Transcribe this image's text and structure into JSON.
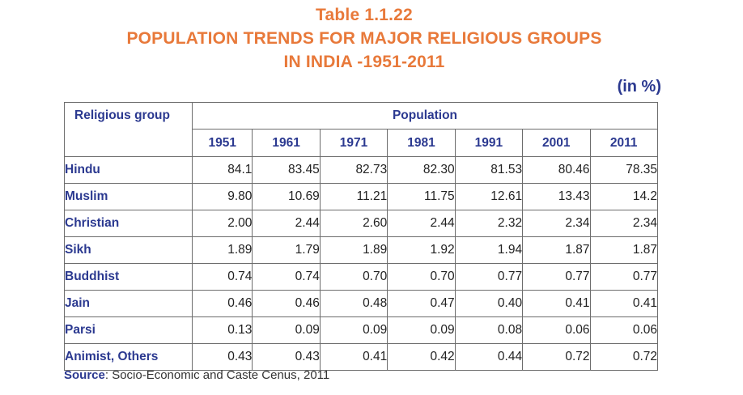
{
  "title": {
    "line1": "Table 1.1.22",
    "line2": "POPULATION TRENDS FOR MAJOR RELIGIOUS GROUPS",
    "line3": "IN INDIA -1951-2011"
  },
  "unit": "(in %)",
  "table": {
    "group_header": "Religious group",
    "population_header": "Population",
    "years": [
      "1951",
      "1961",
      "1971",
      "1981",
      "1991",
      "2001",
      "2011"
    ],
    "rows": [
      {
        "name": "Hindu",
        "values": [
          "84.1",
          "83.45",
          "82.73",
          "82.30",
          "81.53",
          "80.46",
          "78.35"
        ]
      },
      {
        "name": "Muslim",
        "values": [
          "9.80",
          "10.69",
          "11.21",
          "11.75",
          "12.61",
          "13.43",
          "14.2"
        ]
      },
      {
        "name": "Christian",
        "values": [
          "2.00",
          "2.44",
          "2.60",
          "2.44",
          "2.32",
          "2.34",
          "2.34"
        ]
      },
      {
        "name": "Sikh",
        "values": [
          "1.89",
          "1.79",
          "1.89",
          "1.92",
          "1.94",
          "1.87",
          "1.87"
        ]
      },
      {
        "name": "Buddhist",
        "values": [
          "0.74",
          "0.74",
          "0.70",
          "0.70",
          "0.77",
          "0.77",
          "0.77"
        ]
      },
      {
        "name": "Jain",
        "values": [
          "0.46",
          "0.46",
          "0.48",
          "0.47",
          "0.40",
          "0.41",
          "0.41"
        ]
      },
      {
        "name": "Parsi",
        "values": [
          "0.13",
          "0.09",
          "0.09",
          "0.09",
          "0.08",
          "0.06",
          "0.06"
        ]
      },
      {
        "name": "Animist, Others",
        "values": [
          "0.43",
          "0.43",
          "0.41",
          "0.42",
          "0.44",
          "0.72",
          "0.72"
        ]
      }
    ]
  },
  "source": {
    "label": "Source",
    "text": ": Socio-Economic and Caste Cenus, 2011"
  },
  "colors": {
    "title": "#e8793a",
    "header_text": "#2b3990",
    "border": "#6d6d6d"
  }
}
